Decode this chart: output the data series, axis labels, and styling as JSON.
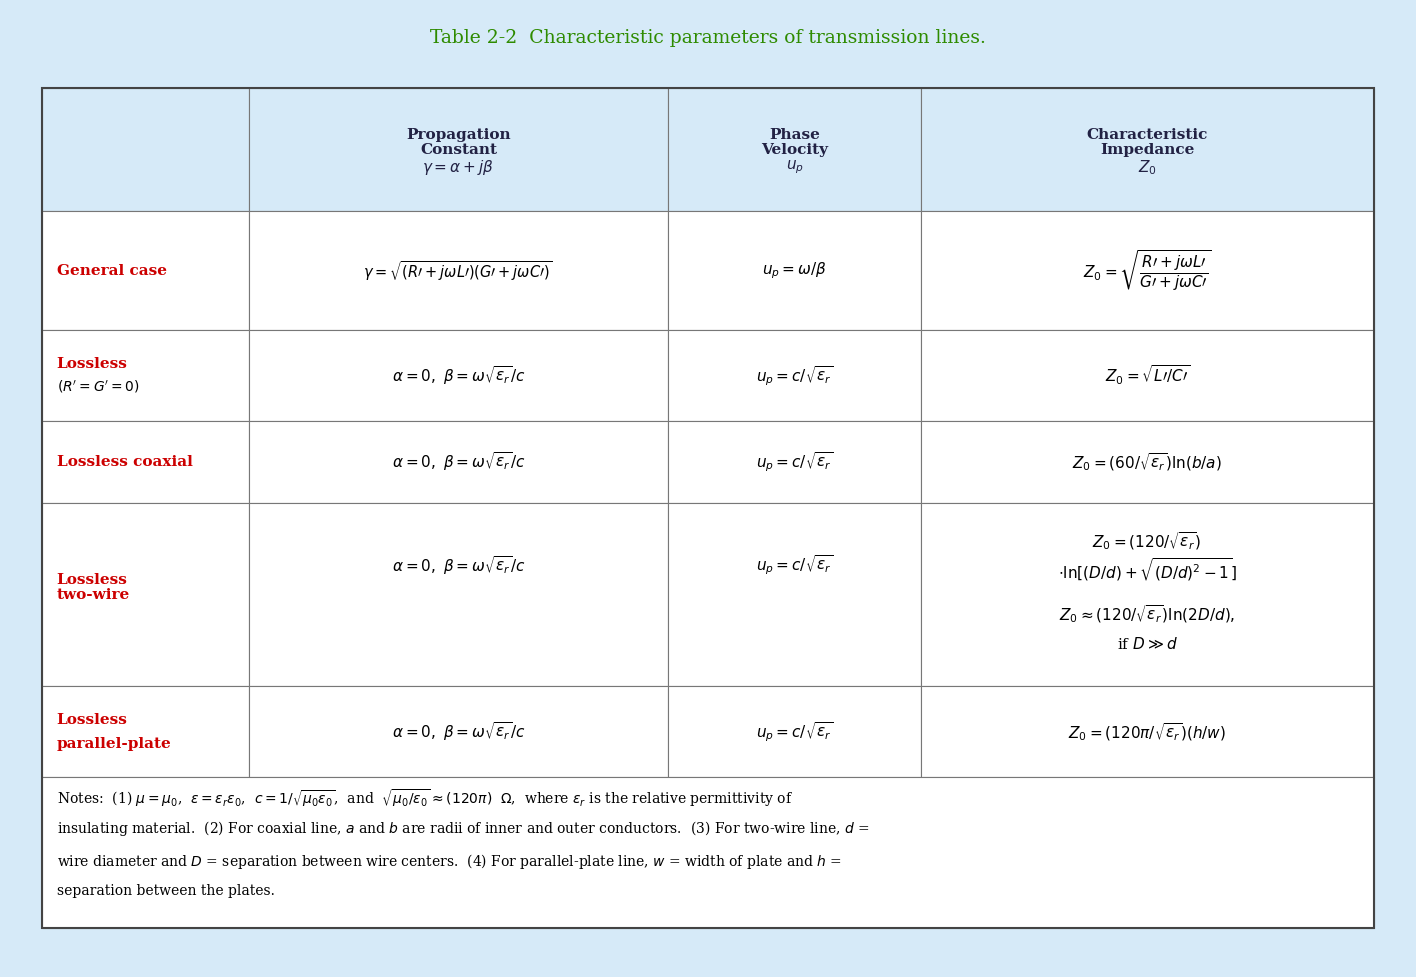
{
  "title": "Table 2-2  Characteristic parameters of transmission lines.",
  "title_color": "#2e8b00",
  "title_bold_part": "Characteristic parameters of transmission lines.",
  "background_color": "#d6eaf8",
  "table_bg": "#ffffff",
  "header_bg": "#d6eaf8",
  "row_label_color": "#cc0000",
  "text_color": "#000000",
  "border_color": "#888888",
  "col_headers": [
    "Propagation\nConstant\n$\\gamma = \\alpha + j\\beta$",
    "Phase\nVelocity\n$u_p$",
    "Characteristic\nImpedance\n$Z_0$"
  ],
  "rows": [
    {
      "label": "General case",
      "prop_constant": "$\\gamma = \\sqrt{(R' + j\\omega L')(G' + j\\omega C')}$",
      "phase_vel": "$u_p = \\omega/\\beta$",
      "char_imp": "$Z_0 = \\sqrt{\\dfrac{R' + j\\omega L'}{G' + j\\omega C'}}$"
    },
    {
      "label": "Lossless\n$(R' = G' = 0)$",
      "prop_constant": "$\\alpha = 0,\\ \\beta = \\omega\\sqrt{\\epsilon_r}/c$",
      "phase_vel": "$u_p = c/\\sqrt{\\epsilon_r}$",
      "char_imp": "$Z_0 = \\sqrt{L'/C'}$"
    },
    {
      "label": "Lossless coaxial",
      "prop_constant": "$\\alpha = 0,\\ \\beta = \\omega\\sqrt{\\epsilon_r}/c$",
      "phase_vel": "$u_p = c/\\sqrt{\\epsilon_r}$",
      "char_imp": "$Z_0 = (60/\\sqrt{\\epsilon_r})\\ln(b/a)$"
    },
    {
      "label": "Lossless\ntwo-wire",
      "prop_constant": "$\\alpha = 0,\\ \\beta = \\omega\\sqrt{\\epsilon_r}/c$",
      "phase_vel": "$u_p = c/\\sqrt{\\epsilon_r}$",
      "char_imp_line1": "$Z_0 = (120/\\sqrt{\\epsilon_r})$",
      "char_imp_line2": "$\\cdot\\ln[(D/d) + \\sqrt{(D/d)^2 - 1}]$",
      "char_imp_line3": "$Z_0 \\approx (120/\\sqrt{\\epsilon_r})\\ln(2D/d),$",
      "char_imp_line4": "if $D \\gg d$"
    },
    {
      "label": "Lossless\nparallel-plate",
      "prop_constant": "$\\alpha = 0,\\ \\beta = \\omega\\sqrt{\\epsilon_r}/c$",
      "phase_vel": "$u_p = c/\\sqrt{\\epsilon_r}$",
      "char_imp": "$Z_0 = (120\\pi/\\sqrt{\\epsilon_r})(h/w)$"
    }
  ],
  "notes": "Notes:  (1) $\\mu = \\mu_0$,  $\\epsilon = \\epsilon_r\\epsilon_0$,  $c = 1/\\sqrt{\\mu_0\\epsilon_0}$,  and  $\\sqrt{\\mu_0/\\epsilon_0} \\approx (120\\pi)$  Ω,  where $\\epsilon_r$ is the relative permittivity of\ninsulating material.  (2) For coaxial line, $a$ and $b$ are radii of inner and outer conductors.  (3) For two-wire line, $d$ =\nwire diameter and $D$ = separation between wire centers.  (4) For parallel-plate line, $w$ = width of plate and $h$ =\nseparation between the plates."
}
